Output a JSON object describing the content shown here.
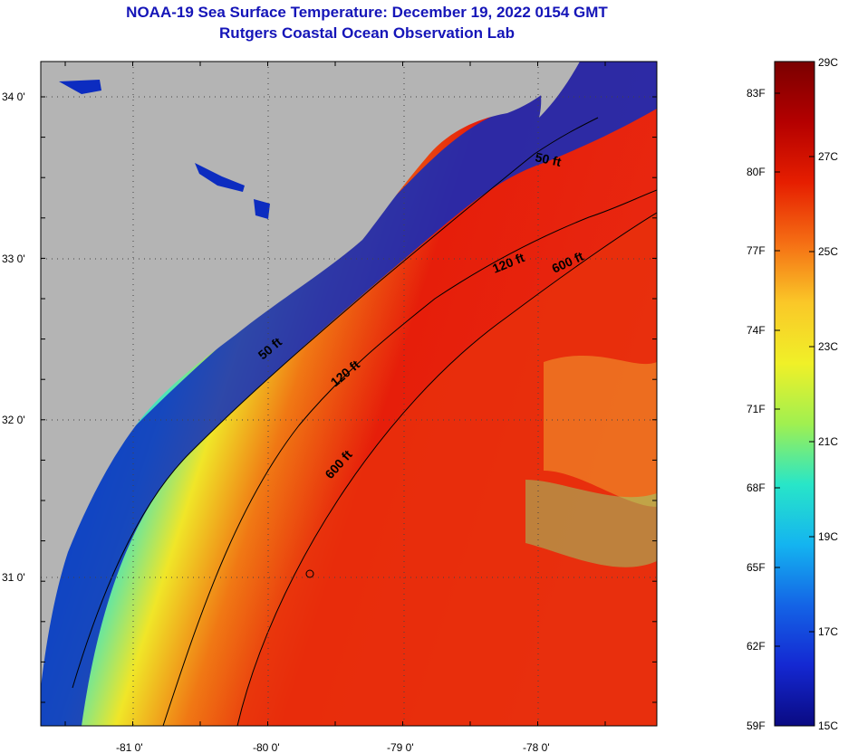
{
  "header": {
    "title_line1": "NOAA-19 Sea Surface Temperature:  December 19, 2022 0154 GMT",
    "title_line2": "Rutgers Coastal Ocean Observation Lab"
  },
  "map": {
    "lon_labels": [
      "-81 0'",
      "-80 0'",
      "-79 0'",
      "-78 0'"
    ],
    "lat_labels": [
      "34 0'",
      "33 0'",
      "32 0'",
      "31 0'"
    ],
    "contour_labels": [
      "50 ft",
      "120 ft",
      "600 ft",
      "50 ft",
      "120 ft",
      "600 ft"
    ],
    "colors": {
      "land": "#b4b4b4",
      "coast_cold": "#0a1fb0",
      "cyan": "#19c8e6",
      "yellow": "#f0e628",
      "orange": "#f07814",
      "red": "#e61e0a"
    }
  },
  "colorbar": {
    "celsius_labels": [
      "29C",
      "27C",
      "25C",
      "23C",
      "21C",
      "19C",
      "17C",
      "15C"
    ],
    "fahrenheit_labels": [
      "83F",
      "80F",
      "77F",
      "74F",
      "71F",
      "68F",
      "65F",
      "62F",
      "59F"
    ],
    "colors_top_to_bottom": [
      "#7a0000",
      "#b40000",
      "#e61e00",
      "#f56e14",
      "#fac828",
      "#f0f028",
      "#a0f050",
      "#28e6c8",
      "#14b4f0",
      "#1464e6",
      "#1428d2",
      "#0a0a82"
    ]
  }
}
